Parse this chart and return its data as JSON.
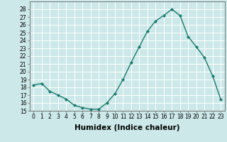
{
  "x": [
    0,
    1,
    2,
    3,
    4,
    5,
    6,
    7,
    8,
    9,
    10,
    11,
    12,
    13,
    14,
    15,
    16,
    17,
    18,
    19,
    20,
    21,
    22,
    23
  ],
  "y": [
    18.3,
    18.5,
    17.5,
    17.0,
    16.5,
    15.7,
    15.4,
    15.2,
    15.2,
    16.0,
    17.2,
    19.0,
    21.2,
    23.2,
    25.2,
    26.5,
    27.2,
    28.0,
    27.2,
    24.5,
    23.2,
    21.8,
    19.5,
    16.5
  ],
  "line_color": "#1a7a6e",
  "marker": "D",
  "marker_size": 2,
  "bg_color": "#cce8e8",
  "grid_color": "#ffffff",
  "xlabel": "Humidex (Indice chaleur)",
  "ylim": [
    15,
    29
  ],
  "xlim": [
    -0.5,
    23.5
  ],
  "yticks": [
    15,
    16,
    17,
    18,
    19,
    20,
    21,
    22,
    23,
    24,
    25,
    26,
    27,
    28
  ],
  "xticks": [
    0,
    1,
    2,
    3,
    4,
    5,
    6,
    7,
    8,
    9,
    10,
    11,
    12,
    13,
    14,
    15,
    16,
    17,
    18,
    19,
    20,
    21,
    22,
    23
  ],
  "tick_fontsize": 5.5,
  "xlabel_fontsize": 7.5
}
